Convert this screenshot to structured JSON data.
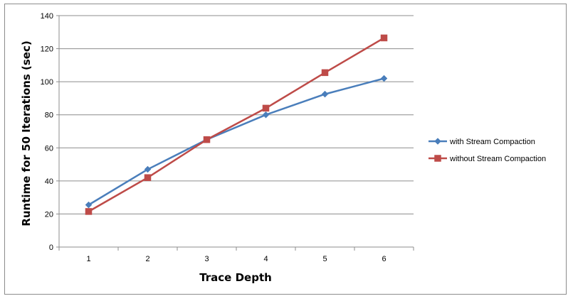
{
  "chart_data": {
    "type": "line",
    "title": "",
    "xlabel": "Trace Depth",
    "ylabel": "Runtime for 50 Iterations (sec)",
    "categories": [
      "1",
      "2",
      "3",
      "4",
      "5",
      "6"
    ],
    "ylim": [
      0,
      140
    ],
    "yticks": [
      "0",
      "20",
      "40",
      "60",
      "80",
      "100",
      "120",
      "140"
    ],
    "grid": true,
    "legend_position": "right",
    "series": [
      {
        "name": "with Stream Compaction",
        "values": [
          25.5,
          47,
          65,
          80,
          92.5,
          102
        ],
        "color": "#4a7ebb",
        "marker": "diamond"
      },
      {
        "name": "without Stream Compaction",
        "values": [
          21.5,
          42,
          65,
          84,
          105.5,
          126.5
        ],
        "color": "#be4b48",
        "marker": "square"
      }
    ]
  }
}
